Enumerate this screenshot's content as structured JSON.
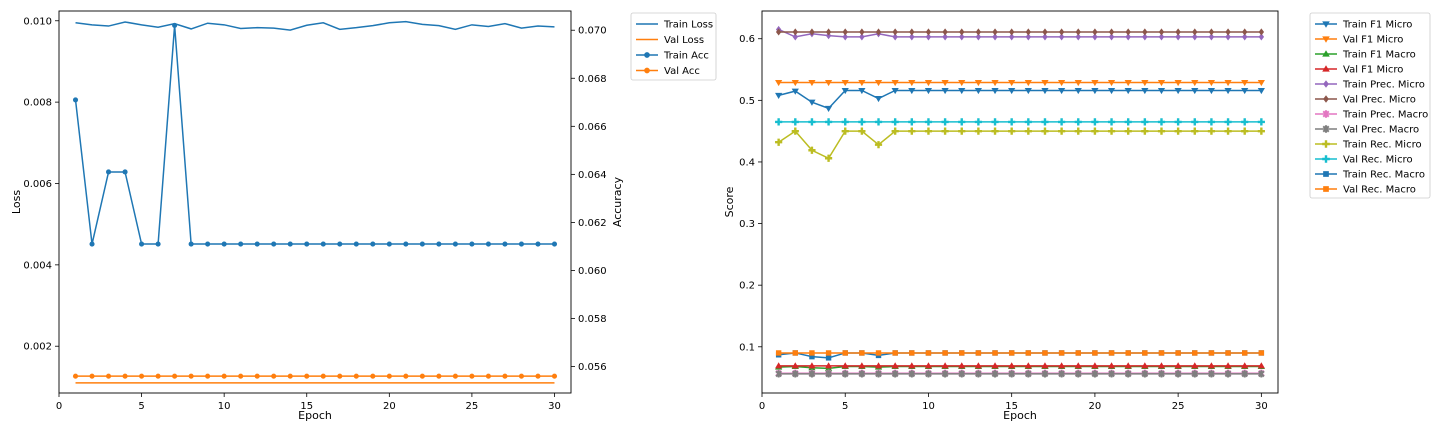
{
  "chart_data": [
    {
      "type": "line",
      "x": [
        1,
        2,
        3,
        4,
        5,
        6,
        7,
        8,
        9,
        10,
        11,
        12,
        13,
        14,
        15,
        16,
        17,
        18,
        19,
        20,
        21,
        22,
        23,
        24,
        25,
        26,
        27,
        28,
        29,
        30
      ],
      "xlabel": "Epoch",
      "xlim": [
        0,
        31
      ],
      "xticks": [
        0,
        5,
        10,
        15,
        20,
        25,
        30
      ],
      "left_axis": {
        "label": "Loss",
        "lim": [
          0.00085,
          0.01024
        ],
        "ticks": [
          0.002,
          0.004,
          0.006,
          0.008,
          0.01
        ],
        "tick_labels": [
          "0.002",
          "0.004",
          "0.006",
          "0.008",
          "0.010"
        ]
      },
      "right_axis": {
        "label": "Accuracy",
        "lim": [
          0.0549,
          0.0708
        ],
        "ticks": [
          0.056,
          0.058,
          0.06,
          0.062,
          0.064,
          0.066,
          0.068,
          0.07
        ],
        "tick_labels": [
          "0.056",
          "0.058",
          "0.060",
          "0.062",
          "0.064",
          "0.066",
          "0.068",
          "0.070"
        ]
      },
      "series": [
        {
          "name": "Train Loss",
          "axis": "left",
          "color": "#1f77b4",
          "marker": "none",
          "values": [
            0.00995,
            0.0099,
            0.00987,
            0.00997,
            0.0099,
            0.00984,
            0.00993,
            0.0098,
            0.00994,
            0.0099,
            0.00981,
            0.00983,
            0.00982,
            0.00977,
            0.00989,
            0.00995,
            0.00979,
            0.00983,
            0.00988,
            0.00995,
            0.00998,
            0.00991,
            0.00988,
            0.00979,
            0.0099,
            0.00986,
            0.00993,
            0.00982,
            0.00987,
            0.00985
          ]
        },
        {
          "name": "Val Loss",
          "axis": "left",
          "color": "#ff7f0e",
          "marker": "none",
          "values": [
            0.0011,
            0.0011,
            0.0011,
            0.0011,
            0.0011,
            0.0011,
            0.0011,
            0.0011,
            0.0011,
            0.0011,
            0.0011,
            0.0011,
            0.0011,
            0.0011,
            0.0011,
            0.0011,
            0.0011,
            0.0011,
            0.0011,
            0.0011,
            0.0011,
            0.0011,
            0.0011,
            0.0011,
            0.0011,
            0.0011,
            0.0011,
            0.0011,
            0.0011,
            0.0011
          ]
        },
        {
          "name": "Train Acc",
          "axis": "right",
          "color": "#1f77b4",
          "marker": "circle",
          "values": [
            0.0671,
            0.0611,
            0.0641,
            0.0641,
            0.0611,
            0.0611,
            0.0702,
            0.0611,
            0.0611,
            0.0611,
            0.0611,
            0.0611,
            0.0611,
            0.0611,
            0.0611,
            0.0611,
            0.0611,
            0.0611,
            0.0611,
            0.0611,
            0.0611,
            0.0611,
            0.0611,
            0.0611,
            0.0611,
            0.0611,
            0.0611,
            0.0611,
            0.0611,
            0.0611
          ]
        },
        {
          "name": "Val Acc",
          "axis": "right",
          "color": "#ff7f0e",
          "marker": "circle",
          "values": [
            0.0556,
            0.0556,
            0.0556,
            0.0556,
            0.0556,
            0.0556,
            0.0556,
            0.0556,
            0.0556,
            0.0556,
            0.0556,
            0.0556,
            0.0556,
            0.0556,
            0.0556,
            0.0556,
            0.0556,
            0.0556,
            0.0556,
            0.0556,
            0.0556,
            0.0556,
            0.0556,
            0.0556,
            0.0556,
            0.0556,
            0.0556,
            0.0556,
            0.0556,
            0.0556
          ]
        }
      ],
      "legend": "outside-top-right"
    },
    {
      "type": "line",
      "x": [
        1,
        2,
        3,
        4,
        5,
        6,
        7,
        8,
        9,
        10,
        11,
        12,
        13,
        14,
        15,
        16,
        17,
        18,
        19,
        20,
        21,
        22,
        23,
        24,
        25,
        26,
        27,
        28,
        29,
        30
      ],
      "xlabel": "Epoch",
      "ylabel": "Score",
      "xlim": [
        0,
        31
      ],
      "ylim": [
        0.025,
        0.645
      ],
      "xticks": [
        0,
        5,
        10,
        15,
        20,
        25,
        30
      ],
      "yticks": [
        0.1,
        0.2,
        0.3,
        0.4,
        0.5,
        0.6
      ],
      "ytick_labels": [
        "0.1",
        "0.2",
        "0.3",
        "0.4",
        "0.5",
        "0.6"
      ],
      "series": [
        {
          "name": "Train F1 Micro",
          "color": "#1f77b4",
          "marker": "triangle-down",
          "values": [
            0.508,
            0.515,
            0.497,
            0.487,
            0.516,
            0.516,
            0.503,
            0.516,
            0.516,
            0.516,
            0.516,
            0.516,
            0.516,
            0.516,
            0.516,
            0.516,
            0.516,
            0.516,
            0.516,
            0.516,
            0.516,
            0.516,
            0.516,
            0.516,
            0.516,
            0.516,
            0.516,
            0.516,
            0.516,
            0.516
          ]
        },
        {
          "name": "Val F1 Micro",
          "color": "#ff7f0e",
          "marker": "triangle-down",
          "values": [
            0.529,
            0.529,
            0.529,
            0.529,
            0.529,
            0.529,
            0.529,
            0.529,
            0.529,
            0.529,
            0.529,
            0.529,
            0.529,
            0.529,
            0.529,
            0.529,
            0.529,
            0.529,
            0.529,
            0.529,
            0.529,
            0.529,
            0.529,
            0.529,
            0.529,
            0.529,
            0.529,
            0.529,
            0.529,
            0.529
          ]
        },
        {
          "name": "Train F1 Macro",
          "color": "#2ca02c",
          "marker": "triangle-up",
          "values": [
            0.067,
            0.068,
            0.066,
            0.065,
            0.068,
            0.068,
            0.067,
            0.068,
            0.068,
            0.068,
            0.068,
            0.068,
            0.068,
            0.068,
            0.068,
            0.068,
            0.068,
            0.068,
            0.068,
            0.068,
            0.068,
            0.068,
            0.068,
            0.068,
            0.068,
            0.068,
            0.068,
            0.068,
            0.068,
            0.068
          ]
        },
        {
          "name": "Val F1 Micro",
          "color": "#d62728",
          "marker": "triangle-up",
          "values": [
            0.069,
            0.069,
            0.069,
            0.069,
            0.069,
            0.069,
            0.069,
            0.069,
            0.069,
            0.069,
            0.069,
            0.069,
            0.069,
            0.069,
            0.069,
            0.069,
            0.069,
            0.069,
            0.069,
            0.069,
            0.069,
            0.069,
            0.069,
            0.069,
            0.069,
            0.069,
            0.069,
            0.069,
            0.069,
            0.069
          ]
        },
        {
          "name": "Train Prec. Micro",
          "color": "#9467bd",
          "marker": "diamond",
          "values": [
            0.615,
            0.603,
            0.608,
            0.605,
            0.603,
            0.603,
            0.608,
            0.603,
            0.603,
            0.603,
            0.603,
            0.603,
            0.603,
            0.603,
            0.603,
            0.603,
            0.603,
            0.603,
            0.603,
            0.603,
            0.603,
            0.603,
            0.603,
            0.603,
            0.603,
            0.603,
            0.603,
            0.603,
            0.603,
            0.603
          ]
        },
        {
          "name": "Val Prec. Micro",
          "color": "#8c564b",
          "marker": "diamond",
          "values": [
            0.611,
            0.611,
            0.611,
            0.611,
            0.611,
            0.611,
            0.611,
            0.611,
            0.611,
            0.611,
            0.611,
            0.611,
            0.611,
            0.611,
            0.611,
            0.611,
            0.611,
            0.611,
            0.611,
            0.611,
            0.611,
            0.611,
            0.611,
            0.611,
            0.611,
            0.611,
            0.611,
            0.611,
            0.611,
            0.611
          ]
        },
        {
          "name": "Train Prec. Macro",
          "color": "#e377c2",
          "marker": "star",
          "values": [
            0.057,
            0.057,
            0.057,
            0.057,
            0.057,
            0.057,
            0.057,
            0.057,
            0.057,
            0.057,
            0.057,
            0.057,
            0.057,
            0.057,
            0.057,
            0.057,
            0.057,
            0.057,
            0.057,
            0.057,
            0.057,
            0.057,
            0.057,
            0.057,
            0.057,
            0.057,
            0.057,
            0.057,
            0.057,
            0.057
          ]
        },
        {
          "name": "Val Prec. Macro",
          "color": "#7f7f7f",
          "marker": "star",
          "values": [
            0.056,
            0.056,
            0.056,
            0.056,
            0.056,
            0.056,
            0.056,
            0.056,
            0.056,
            0.056,
            0.056,
            0.056,
            0.056,
            0.056,
            0.056,
            0.056,
            0.056,
            0.056,
            0.056,
            0.056,
            0.056,
            0.056,
            0.056,
            0.056,
            0.056,
            0.056,
            0.056,
            0.056,
            0.056,
            0.056
          ]
        },
        {
          "name": "Train Rec. Micro",
          "color": "#bcbd22",
          "marker": "plus",
          "values": [
            0.432,
            0.45,
            0.419,
            0.406,
            0.45,
            0.45,
            0.428,
            0.45,
            0.45,
            0.45,
            0.45,
            0.45,
            0.45,
            0.45,
            0.45,
            0.45,
            0.45,
            0.45,
            0.45,
            0.45,
            0.45,
            0.45,
            0.45,
            0.45,
            0.45,
            0.45,
            0.45,
            0.45,
            0.45,
            0.45
          ]
        },
        {
          "name": "Val Rec. Micro",
          "color": "#17becf",
          "marker": "plus",
          "values": [
            0.465,
            0.465,
            0.465,
            0.465,
            0.465,
            0.465,
            0.465,
            0.465,
            0.465,
            0.465,
            0.465,
            0.465,
            0.465,
            0.465,
            0.465,
            0.465,
            0.465,
            0.465,
            0.465,
            0.465,
            0.465,
            0.465,
            0.465,
            0.465,
            0.465,
            0.465,
            0.465,
            0.465,
            0.465,
            0.465
          ]
        },
        {
          "name": "Train Rec. Macro",
          "color": "#1f77b4",
          "marker": "square",
          "values": [
            0.087,
            0.09,
            0.084,
            0.082,
            0.09,
            0.09,
            0.086,
            0.09,
            0.09,
            0.09,
            0.09,
            0.09,
            0.09,
            0.09,
            0.09,
            0.09,
            0.09,
            0.09,
            0.09,
            0.09,
            0.09,
            0.09,
            0.09,
            0.09,
            0.09,
            0.09,
            0.09,
            0.09,
            0.09,
            0.09
          ]
        },
        {
          "name": "Val Rec. Macro",
          "color": "#ff7f0e",
          "marker": "square",
          "values": [
            0.09,
            0.09,
            0.09,
            0.09,
            0.09,
            0.09,
            0.09,
            0.09,
            0.09,
            0.09,
            0.09,
            0.09,
            0.09,
            0.09,
            0.09,
            0.09,
            0.09,
            0.09,
            0.09,
            0.09,
            0.09,
            0.09,
            0.09,
            0.09,
            0.09,
            0.09,
            0.09,
            0.09,
            0.09,
            0.09
          ]
        }
      ],
      "legend": "outside-top-right"
    }
  ]
}
